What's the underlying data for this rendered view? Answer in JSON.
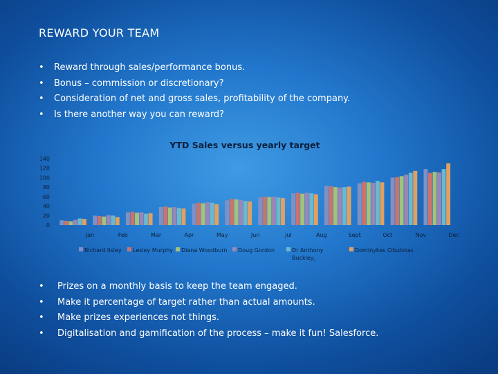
{
  "slide": {
    "title": "REWARD YOUR TEAM",
    "top_bullets": [
      "Reward through sales/performance bonus.",
      "Bonus – commission or discretionary?",
      "Consideration of net and gross sales, profitability of the company.",
      "Is there another way you can reward?"
    ],
    "bottom_bullets": [
      "Prizes on a monthly basis to keep the team engaged.",
      "Make it percentage of target rather than actual amounts.",
      "Make prizes experiences not things.",
      "Digitalisation and gamification of the process – make it fun! Salesforce."
    ],
    "bullet_char": "•"
  },
  "chart_data": {
    "type": "bar",
    "title": "YTD Sales versus yearly target",
    "categories": [
      "Jan",
      "Feb",
      "Mar",
      "Apr",
      "May",
      "Jun",
      "Jul",
      "Aug",
      "Sept",
      "Oct",
      "Nov",
      "Dec"
    ],
    "ylim": [
      0,
      140
    ],
    "yticks": [
      0,
      20,
      40,
      60,
      80,
      100,
      120,
      140
    ],
    "grid": false,
    "legend_position": "bottom",
    "series": [
      {
        "name": "Richard Ilsley",
        "color": "#7f91c4",
        "values": [
          10,
          20,
          27,
          38,
          45,
          52,
          58,
          67,
          83,
          88,
          100,
          118
        ]
      },
      {
        "name": "Lesley Murphy",
        "color": "#c9736f",
        "values": [
          9,
          19,
          28,
          39,
          47,
          55,
          60,
          68,
          82,
          91,
          101,
          110
        ]
      },
      {
        "name": "Diana Woodburn",
        "color": "#a3c27b",
        "values": [
          8,
          18,
          26,
          37,
          46,
          54,
          59,
          66,
          80,
          90,
          103,
          112
        ]
      },
      {
        "name": "Doug Gordon",
        "color": "#9a86b8",
        "values": [
          11,
          21,
          27,
          38,
          48,
          53,
          60,
          68,
          79,
          89,
          106,
          111
        ]
      },
      {
        "name": "Dr Anthony Buckley,",
        "color": "#6cb8cc",
        "values": [
          14,
          20,
          24,
          36,
          47,
          51,
          58,
          67,
          80,
          93,
          110,
          118
        ]
      },
      {
        "name": "Dominykas Cibulskas",
        "color": "#e0a060",
        "values": [
          13,
          17,
          25,
          35,
          44,
          50,
          57,
          65,
          81,
          90,
          114,
          130
        ]
      }
    ]
  }
}
